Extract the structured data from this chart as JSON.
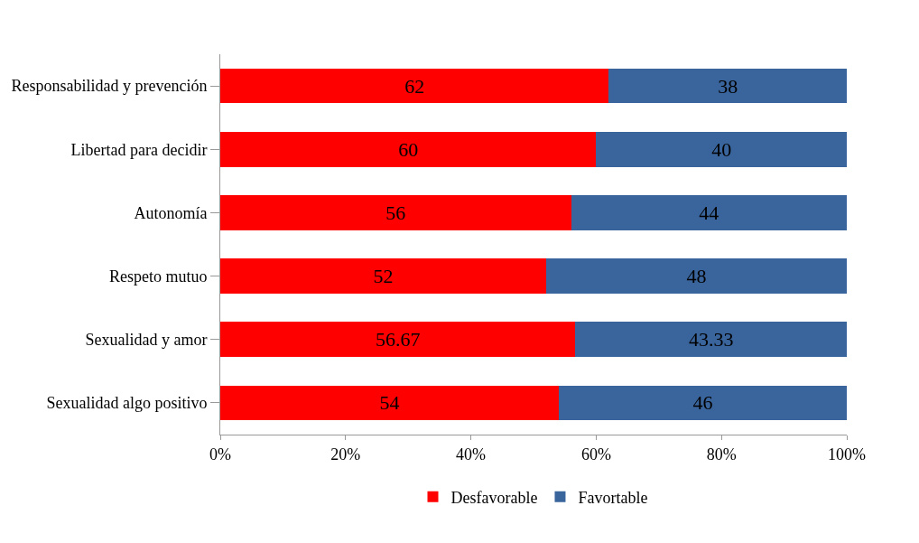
{
  "chart_data": {
    "type": "bar",
    "orientation": "horizontal",
    "stacked": true,
    "data_labels": true,
    "legend": "bottom",
    "categories": [
      "Responsabilidad y prevención",
      "Libertad para decidir",
      "Autonomía",
      "Respeto mutuo",
      "Sexualidad y amor",
      "Sexualidad algo positivo"
    ],
    "series": [
      {
        "name": "Desfavorable",
        "color": "#ff0000",
        "values": [
          62,
          60,
          56,
          52,
          56.67,
          54
        ]
      },
      {
        "name": "Favortable",
        "color": "#3a659c",
        "values": [
          38,
          40,
          44,
          48,
          43.33,
          46
        ]
      }
    ],
    "xlim": [
      0,
      100
    ],
    "xticks": [
      {
        "value": 0,
        "label": "0%"
      },
      {
        "value": 20,
        "label": "20%"
      },
      {
        "value": 40,
        "label": "40%"
      },
      {
        "value": 60,
        "label": "60%"
      },
      {
        "value": 80,
        "label": "80%"
      },
      {
        "value": 100,
        "label": "100%"
      }
    ]
  }
}
